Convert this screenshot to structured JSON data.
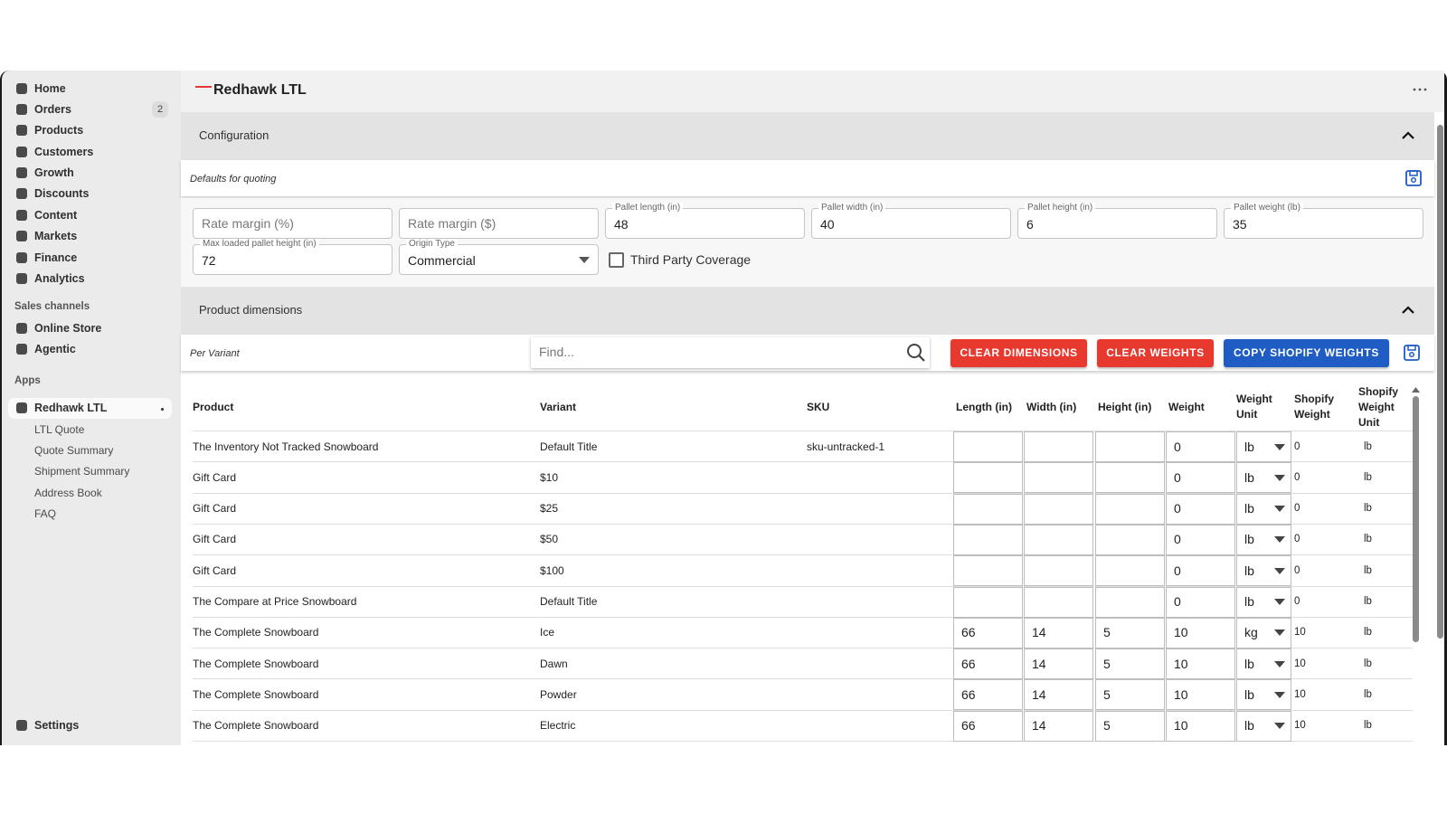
{
  "sidebar": {
    "nav": [
      {
        "label": "Home"
      },
      {
        "label": "Orders",
        "badge": 2
      },
      {
        "label": "Products"
      },
      {
        "label": "Customers"
      },
      {
        "label": "Growth"
      },
      {
        "label": "Discounts"
      },
      {
        "label": "Content"
      },
      {
        "label": "Markets"
      },
      {
        "label": "Finance"
      },
      {
        "label": "Analytics"
      }
    ],
    "sales_channels": {
      "heading": "Sales channels",
      "items": [
        "Online Store",
        "Agentic"
      ]
    },
    "apps": {
      "heading": "Apps",
      "active": "Redhawk LTL",
      "items": [
        "LTL Quote",
        "Quote Summary",
        "Shipment Summary",
        "Address Book",
        "FAQ"
      ]
    },
    "settings": "Settings"
  },
  "header": {
    "title": "Redhawk LTL"
  },
  "configuration": {
    "title": "Configuration",
    "subtitle": "Defaults for quoting",
    "fields": [
      {
        "placeholder": "Rate margin (%)"
      },
      {
        "placeholder": "Rate margin ($)"
      },
      {
        "label": "Pallet length (in)",
        "value": 48
      },
      {
        "label": "Pallet width (in)",
        "value": 40
      },
      {
        "label": "Pallet height (in)",
        "value": 6
      },
      {
        "label": "Pallet weight (lb)",
        "value": 35
      },
      {
        "label": "Max loaded pallet height (in)",
        "value": 72
      },
      {
        "label": "Origin Type",
        "value": "Commercial",
        "type": "select"
      }
    ],
    "checkbox": {
      "label": "Third Party Coverage",
      "checked": false
    }
  },
  "product_dimensions": {
    "title": "Product dimensions",
    "subtitle": "Per Variant",
    "search_placeholder": "Find...",
    "buttons": [
      {
        "label": "CLEAR DIMENSIONS",
        "color": "#e8392f"
      },
      {
        "label": "CLEAR WEIGHTS",
        "color": "#e8392f"
      },
      {
        "label": "COPY SHOPIFY WEIGHTS",
        "color": "#1f5cc4"
      }
    ],
    "table": {
      "columns": [
        "Product",
        "Variant",
        "SKU",
        "Length (in)",
        "Width (in)",
        "Height (in)",
        "Weight",
        "Weight Unit",
        "Shopify Weight",
        "Shopify Weight Unit"
      ],
      "rows": [
        [
          "The Inventory Not Tracked Snowboard",
          "Default Title",
          "sku-untracked-1",
          null,
          null,
          null,
          0,
          "lb",
          0,
          "lb"
        ],
        [
          "Gift Card",
          "$10",
          null,
          null,
          null,
          null,
          0,
          "lb",
          0,
          "lb"
        ],
        [
          "Gift Card",
          "$25",
          null,
          null,
          null,
          null,
          0,
          "lb",
          0,
          "lb"
        ],
        [
          "Gift Card",
          "$50",
          null,
          null,
          null,
          null,
          0,
          "lb",
          0,
          "lb"
        ],
        [
          "Gift Card",
          "$100",
          null,
          null,
          null,
          null,
          0,
          "lb",
          0,
          "lb"
        ],
        [
          "The Compare at Price Snowboard",
          "Default Title",
          null,
          null,
          null,
          null,
          0,
          "lb",
          0,
          "lb"
        ],
        [
          "The Complete Snowboard",
          "Ice",
          null,
          66,
          14,
          5,
          10,
          "kg",
          10,
          "lb"
        ],
        [
          "The Complete Snowboard",
          "Dawn",
          null,
          66,
          14,
          5,
          10,
          "lb",
          10,
          "lb"
        ],
        [
          "The Complete Snowboard",
          "Powder",
          null,
          66,
          14,
          5,
          10,
          "lb",
          10,
          "lb"
        ],
        [
          "The Complete Snowboard",
          "Electric",
          null,
          66,
          14,
          5,
          10,
          "lb",
          10,
          "lb"
        ]
      ]
    }
  }
}
